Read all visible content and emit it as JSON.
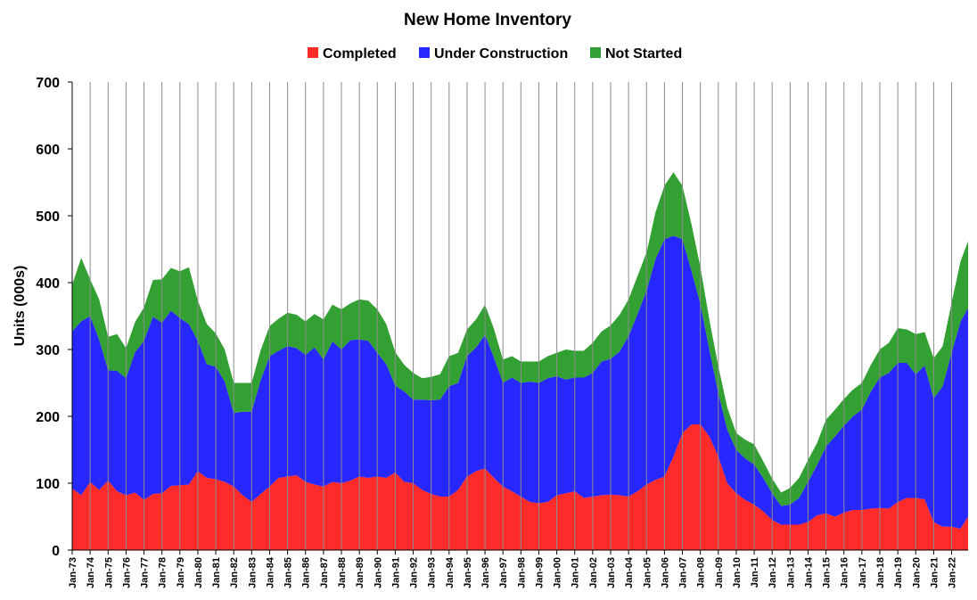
{
  "chart_data": {
    "type": "area",
    "stacked": true,
    "title": "New Home Inventory",
    "xlabel": "",
    "ylabel": "Units (000s)",
    "ylim": [
      0,
      700
    ],
    "yticks": [
      0,
      100,
      200,
      300,
      400,
      500,
      600,
      700
    ],
    "grid": "vertical",
    "legend": "top-center",
    "x_range": [
      "Jan-73",
      "Dec-22"
    ],
    "x_tick_labels": [
      "Jan-73",
      "Jan-74",
      "Jan-75",
      "Jan-76",
      "Jan-77",
      "Jan-78",
      "Jan-79",
      "Jan-80",
      "Jan-81",
      "Jan-82",
      "Jan-83",
      "Jan-84",
      "Jan-85",
      "Jan-86",
      "Jan-87",
      "Jan-88",
      "Jan-89",
      "Jan-90",
      "Jan-91",
      "Jan-92",
      "Jan-93",
      "Jan-94",
      "Jan-95",
      "Jan-96",
      "Jan-97",
      "Jan-98",
      "Jan-99",
      "Jan-00",
      "Jan-01",
      "Jan-02",
      "Jan-03",
      "Jan-04",
      "Jan-05",
      "Jan-06",
      "Jan-07",
      "Jan-08",
      "Jan-09",
      "Jan-10",
      "Jan-11",
      "Jan-12",
      "Jan-13",
      "Jan-14",
      "Jan-15",
      "Jan-16",
      "Jan-17",
      "Jan-18",
      "Jan-19",
      "Jan-20",
      "Jan-21",
      "Jan-22"
    ],
    "x": [
      "Jan-73",
      "Jul-73",
      "Jan-74",
      "Jul-74",
      "Jan-75",
      "Jul-75",
      "Jan-76",
      "Jul-76",
      "Jan-77",
      "Jul-77",
      "Jan-78",
      "Jul-78",
      "Jan-79",
      "Jul-79",
      "Jan-80",
      "Jul-80",
      "Jan-81",
      "Jul-81",
      "Jan-82",
      "Jul-82",
      "Jan-83",
      "Jul-83",
      "Jan-84",
      "Jul-84",
      "Jan-85",
      "Jul-85",
      "Jan-86",
      "Jul-86",
      "Jan-87",
      "Jul-87",
      "Jan-88",
      "Jul-88",
      "Jan-89",
      "Jul-89",
      "Jan-90",
      "Jul-90",
      "Jan-91",
      "Jul-91",
      "Jan-92",
      "Jul-92",
      "Jan-93",
      "Jul-93",
      "Jan-94",
      "Jul-94",
      "Jan-95",
      "Jul-95",
      "Jan-96",
      "Jul-96",
      "Jan-97",
      "Jul-97",
      "Jan-98",
      "Jul-98",
      "Jan-99",
      "Jul-99",
      "Jan-00",
      "Jul-00",
      "Jan-01",
      "Jul-01",
      "Jan-02",
      "Jul-02",
      "Jan-03",
      "Jul-03",
      "Jan-04",
      "Jul-04",
      "Jan-05",
      "Jul-05",
      "Jan-06",
      "Jul-06",
      "Jan-07",
      "Jul-07",
      "Jan-08",
      "Jul-08",
      "Jan-09",
      "Jul-09",
      "Jan-10",
      "Jul-10",
      "Jan-11",
      "Jul-11",
      "Jan-12",
      "Jul-12",
      "Jan-13",
      "Jul-13",
      "Jan-14",
      "Jul-14",
      "Jan-15",
      "Jul-15",
      "Jan-16",
      "Jul-16",
      "Jan-17",
      "Jul-17",
      "Jan-18",
      "Jul-18",
      "Jan-19",
      "Jul-19",
      "Jan-20",
      "Jul-20",
      "Jan-21",
      "Jul-21",
      "Jan-22",
      "Jul-22",
      "Dec-22"
    ],
    "series": [
      {
        "name": "Completed",
        "color": "#ff2a2a",
        "values": [
          92,
          82,
          102,
          90,
          104,
          88,
          82,
          86,
          75,
          84,
          85,
          96,
          97,
          98,
          118,
          108,
          106,
          102,
          95,
          82,
          72,
          84,
          95,
          108,
          110,
          112,
          102,
          98,
          95,
          102,
          100,
          104,
          110,
          108,
          110,
          108,
          116,
          102,
          100,
          90,
          84,
          80,
          80,
          90,
          110,
          118,
          122,
          108,
          95,
          88,
          80,
          72,
          70,
          72,
          82,
          85,
          88,
          78,
          80,
          82,
          83,
          82,
          80,
          88,
          98,
          105,
          110,
          140,
          175,
          188,
          188,
          170,
          140,
          100,
          85,
          75,
          68,
          58,
          45,
          38,
          38,
          38,
          42,
          52,
          55,
          50,
          56,
          60,
          60,
          62,
          63,
          62,
          72,
          78,
          78,
          76,
          42,
          35,
          35,
          32,
          50
        ]
      },
      {
        "name": "Under Construction",
        "color": "#2727ff",
        "values": [
          235,
          260,
          248,
          225,
          165,
          180,
          175,
          210,
          238,
          265,
          255,
          262,
          250,
          240,
          195,
          170,
          168,
          150,
          110,
          125,
          135,
          170,
          195,
          190,
          195,
          190,
          190,
          205,
          190,
          210,
          200,
          210,
          205,
          205,
          185,
          170,
          130,
          135,
          125,
          135,
          140,
          145,
          165,
          160,
          180,
          185,
          200,
          180,
          155,
          170,
          170,
          180,
          180,
          185,
          178,
          170,
          170,
          180,
          185,
          200,
          203,
          215,
          240,
          265,
          290,
          330,
          355,
          330,
          290,
          230,
          180,
          130,
          95,
          80,
          65,
          62,
          60,
          50,
          40,
          28,
          30,
          40,
          60,
          75,
          100,
          120,
          130,
          140,
          150,
          175,
          195,
          203,
          208,
          202,
          185,
          200,
          185,
          210,
          260,
          310,
          312
        ]
      },
      {
        "name": "Not Started",
        "color": "#33a033",
        "values": [
          70,
          95,
          55,
          60,
          50,
          55,
          45,
          45,
          50,
          55,
          65,
          64,
          70,
          85,
          60,
          60,
          50,
          48,
          45,
          43,
          43,
          45,
          45,
          48,
          50,
          50,
          50,
          50,
          60,
          55,
          60,
          55,
          60,
          60,
          65,
          60,
          50,
          40,
          40,
          32,
          35,
          38,
          45,
          45,
          40,
          42,
          45,
          43,
          35,
          32,
          32,
          30,
          32,
          33,
          35,
          45,
          40,
          40,
          45,
          45,
          50,
          55,
          55,
          57,
          57,
          70,
          80,
          95,
          80,
          70,
          55,
          45,
          40,
          33,
          25,
          28,
          30,
          25,
          22,
          20,
          25,
          30,
          33,
          33,
          40,
          40,
          40,
          40,
          40,
          40,
          42,
          45,
          52,
          50,
          60,
          50,
          60,
          60,
          75,
          90,
          100
        ]
      }
    ]
  }
}
